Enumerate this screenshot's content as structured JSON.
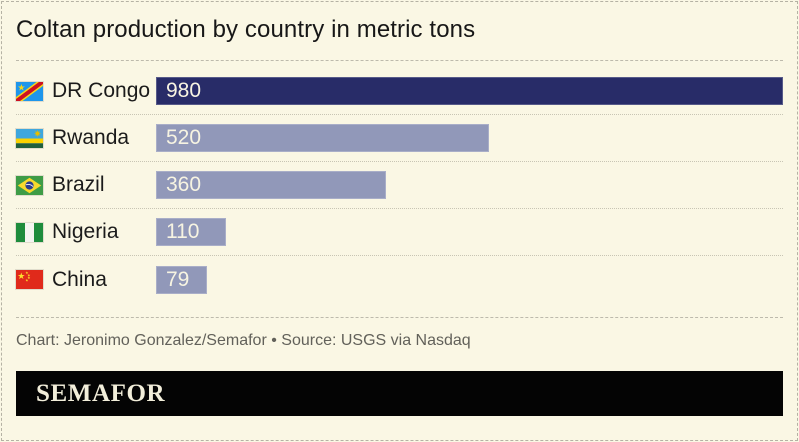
{
  "title": "Coltan production by country in metric tons",
  "caption": "Chart: Jeronimo Gonzalez/Semafor • Source: USGS via Nasdaq",
  "logo": {
    "text": "SEMAFOR"
  },
  "colors": {
    "background": "#FAF7E4",
    "bar_primary": "#282C68",
    "bar_secondary": "#9198B9",
    "value_text": "#F7F4E2",
    "label_text": "#1b1b1b",
    "caption_text": "#62615a",
    "logo_background": "#040404",
    "logo_text": "#F2EEDA"
  },
  "chart_data": {
    "type": "bar",
    "orientation": "horizontal",
    "title": "Coltan production by country in metric tons",
    "unit": "metric tons",
    "categories": [
      "DR Congo",
      "Rwanda",
      "Brazil",
      "Nigeria",
      "China"
    ],
    "values": [
      980,
      520,
      360,
      110,
      79
    ],
    "xlim": [
      0,
      980
    ],
    "grid": false,
    "legend": false,
    "value_labels": "inside-bar-left",
    "highlight_category": "DR Congo",
    "flag_icons": [
      "dr-congo-flag-icon",
      "rwanda-flag-icon",
      "brazil-flag-icon",
      "nigeria-flag-icon",
      "china-flag-icon"
    ],
    "flag_codes": [
      "cd",
      "rw",
      "br",
      "ng",
      "cn"
    ]
  }
}
